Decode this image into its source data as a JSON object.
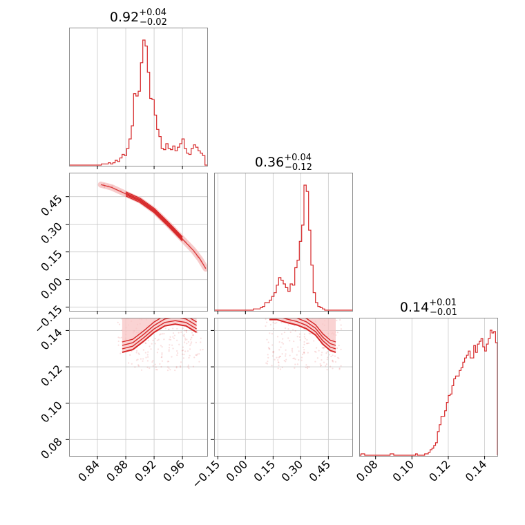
{
  "chart_data": {
    "type": "corner",
    "color": "#d62728",
    "grid": true,
    "parameters": [
      {
        "median": "0.92",
        "plus": "+0.04",
        "minus": "−0.02",
        "range": [
          0.8,
          0.995
        ],
        "ticks": [
          0.84,
          0.88,
          0.92,
          0.96
        ],
        "tick_labels": [
          "0.84",
          "0.88",
          "0.92",
          "0.96"
        ],
        "hist": {
          "x0": 0.8,
          "x1": 0.995,
          "counts": [
            0,
            0,
            0,
            0,
            0,
            0,
            0,
            0,
            0,
            0,
            0,
            0,
            0,
            0,
            1,
            1,
            1,
            2,
            1,
            2,
            4,
            3,
            6,
            9,
            8,
            14,
            22,
            33,
            60,
            58,
            62,
            86,
            105,
            100,
            78,
            56,
            55,
            42,
            30,
            24,
            14,
            13,
            18,
            14,
            13,
            16,
            12,
            15,
            18,
            22,
            14,
            10,
            9,
            14,
            17,
            15,
            12,
            10,
            8,
            0
          ],
          "max_count": 105
        }
      },
      {
        "median": "0.36",
        "plus": "+0.04",
        "minus": "−0.12",
        "range": [
          -0.17,
          0.58
        ],
        "ticks": [
          -0.15,
          0.0,
          0.15,
          0.3,
          0.45
        ],
        "tick_labels": [
          "−0.15",
          "0.00",
          "0.15",
          "0.30",
          "0.45"
        ],
        "hist": {
          "x0": -0.17,
          "x1": 0.58,
          "counts": [
            0,
            0,
            0,
            0,
            0,
            0,
            0,
            0,
            0,
            0,
            0,
            0,
            0,
            0,
            0,
            0,
            0,
            1,
            1,
            1,
            2,
            3,
            6,
            6,
            8,
            11,
            14,
            20,
            26,
            24,
            21,
            18,
            15,
            21,
            20,
            34,
            40,
            55,
            68,
            100,
            95,
            64,
            36,
            14,
            6,
            3,
            2,
            1,
            0,
            0,
            0,
            0,
            0,
            0,
            0,
            0,
            0,
            0,
            0,
            0
          ],
          "max_count": 100
        }
      },
      {
        "median": "0.14",
        "plus": "+0.01",
        "minus": "−0.01",
        "range": [
          0.071,
          0.147
        ],
        "ticks": [
          0.08,
          0.1,
          0.12,
          0.14
        ],
        "tick_labels": [
          "0.08",
          "0.10",
          "0.12",
          "0.14"
        ],
        "hist": {
          "x0": 0.071,
          "x1": 0.147,
          "counts": [
            0,
            1,
            1,
            0,
            0,
            0,
            0,
            0,
            0,
            0,
            0,
            0,
            0,
            0,
            0,
            0,
            0,
            1,
            1,
            0,
            0,
            0,
            0,
            0,
            0,
            0,
            0,
            0,
            0,
            0,
            0,
            1,
            0,
            0,
            0,
            0,
            1,
            1,
            2,
            4,
            5,
            7,
            9,
            17,
            22,
            28,
            28,
            32,
            38,
            43,
            44,
            50,
            55,
            57,
            57,
            61,
            63,
            67,
            70,
            72,
            75,
            70,
            70,
            79,
            74,
            80,
            82,
            84,
            78,
            75,
            80,
            84,
            90,
            88,
            89,
            81
          ],
          "max_count": 90
        }
      }
    ],
    "pairs": [
      {
        "row": 1,
        "col": 0,
        "ylim": [
          -0.17,
          0.58
        ],
        "yticks": [
          -0.15,
          0.0,
          0.15,
          0.3,
          0.45
        ],
        "ytick_labels": [
          "−0.15",
          "0.00",
          "0.15",
          "0.30",
          "0.45"
        ],
        "curve": [
          [
            0.845,
            0.515
          ],
          [
            0.86,
            0.5
          ],
          [
            0.88,
            0.465
          ],
          [
            0.9,
            0.43
          ],
          [
            0.92,
            0.375
          ],
          [
            0.94,
            0.3
          ],
          [
            0.96,
            0.22
          ],
          [
            0.975,
            0.16
          ],
          [
            0.985,
            0.11
          ],
          [
            0.993,
            0.06
          ]
        ],
        "core": [
          0.887,
          0.955
        ]
      },
      {
        "row": 2,
        "col": 0,
        "ylim": [
          0.071,
          0.147
        ],
        "yticks": [
          0.08,
          0.1,
          0.12,
          0.14
        ],
        "ytick_labels": [
          "0.08",
          "0.10",
          "0.12",
          "0.14"
        ],
        "arch": [
          [
            0.875,
            0.128
          ],
          [
            0.89,
            0.1295
          ],
          [
            0.905,
            0.134
          ],
          [
            0.92,
            0.139
          ],
          [
            0.935,
            0.1425
          ],
          [
            0.95,
            0.1435
          ],
          [
            0.965,
            0.1425
          ],
          [
            0.98,
            0.139
          ]
        ],
        "arch_x": [
          0.875,
          0.98
        ]
      },
      {
        "row": 2,
        "col": 1,
        "ylim": [
          0.071,
          0.147
        ],
        "arch": [
          [
            0.13,
            0.146
          ],
          [
            0.17,
            0.146
          ],
          [
            0.22,
            0.1445
          ],
          [
            0.28,
            0.143
          ],
          [
            0.33,
            0.141
          ],
          [
            0.38,
            0.1375
          ],
          [
            0.42,
            0.1325
          ],
          [
            0.46,
            0.129
          ],
          [
            0.49,
            0.128
          ]
        ],
        "arch_x": [
          0.13,
          0.49
        ]
      }
    ]
  }
}
